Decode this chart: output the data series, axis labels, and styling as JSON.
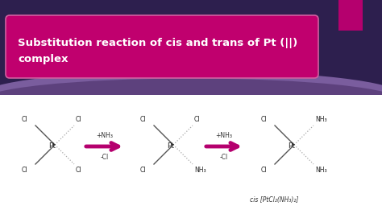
{
  "bg_top_color": "#2d1f4e",
  "bg_bottom_color": "#ffffff",
  "title_bg": "#c0006e",
  "title_color": "#ffffff",
  "title_text_line1": "Substitution reaction of cis and trans of Pt (||)",
  "title_text_line2": "complex",
  "title_fontsize": 9.5,
  "arrow_color": "#b5006e",
  "solid_color": "#555555",
  "dot_color": "#aaaaaa",
  "label_fs": 5.5,
  "pt_fs": 6.5,
  "tab_color": "#b5006e",
  "caption": "cis [PtCl₂(NH₃)₂]",
  "caption_fs": 5.5,
  "arc_color": "#7a5d9e",
  "white_area_color": "#f5f3f8"
}
